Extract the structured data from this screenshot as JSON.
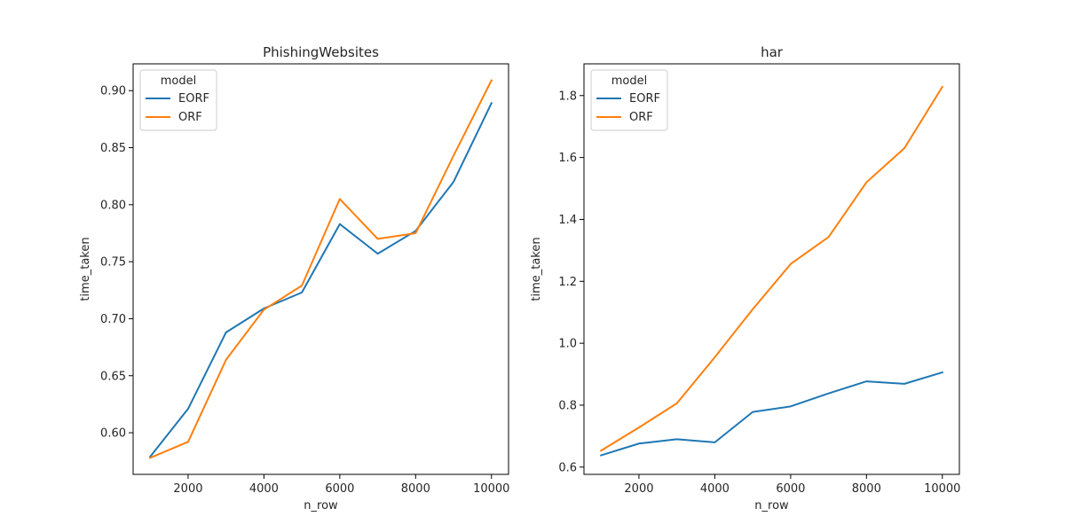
{
  "chart_data": [
    {
      "type": "line",
      "title": "PhishingWebsites",
      "xlabel": "n_row",
      "ylabel": "time_taken",
      "xlim": [
        550,
        10450
      ],
      "ylim": [
        0.5635,
        0.9235
      ],
      "xticks": [
        2000,
        4000,
        6000,
        8000,
        10000
      ],
      "xtick_labels": [
        "2000",
        "4000",
        "6000",
        "8000",
        "10000"
      ],
      "yticks": [
        0.6,
        0.65,
        0.7,
        0.75,
        0.8,
        0.85,
        0.9
      ],
      "ytick_labels": [
        "0.60",
        "0.65",
        "0.70",
        "0.75",
        "0.80",
        "0.85",
        "0.90"
      ],
      "legend_title": "model",
      "legend_position": "upper-left",
      "grid": false,
      "x": [
        1000,
        2000,
        3000,
        4000,
        5000,
        6000,
        7000,
        8000,
        9000,
        10000
      ],
      "series": [
        {
          "name": "EORF",
          "color": "#1f77b4",
          "values": [
            0.579,
            0.621,
            0.688,
            0.709,
            0.723,
            0.783,
            0.757,
            0.777,
            0.82,
            0.889
          ]
        },
        {
          "name": "ORF",
          "color": "#ff7f0e",
          "values": [
            0.578,
            0.592,
            0.664,
            0.708,
            0.729,
            0.805,
            0.77,
            0.775,
            0.843,
            0.909
          ]
        }
      ]
    },
    {
      "type": "line",
      "title": "har",
      "xlabel": "n_row",
      "ylabel": "time_taken",
      "xlim": [
        550,
        10450
      ],
      "ylim": [
        0.5765,
        1.9025
      ],
      "xticks": [
        2000,
        4000,
        6000,
        8000,
        10000
      ],
      "xtick_labels": [
        "2000",
        "4000",
        "6000",
        "8000",
        "10000"
      ],
      "yticks": [
        0.6,
        0.8,
        1.0,
        1.2,
        1.4,
        1.6,
        1.8
      ],
      "ytick_labels": [
        "0.6",
        "0.8",
        "1.0",
        "1.2",
        "1.4",
        "1.6",
        "1.8"
      ],
      "legend_title": "model",
      "legend_position": "upper-left",
      "grid": false,
      "x": [
        1000,
        2000,
        3000,
        4000,
        5000,
        6000,
        7000,
        8000,
        9000,
        10000
      ],
      "series": [
        {
          "name": "EORF",
          "color": "#1f77b4",
          "values": [
            0.638,
            0.676,
            0.69,
            0.68,
            0.778,
            0.796,
            0.838,
            0.877,
            0.869,
            0.906
          ]
        },
        {
          "name": "ORF",
          "color": "#ff7f0e",
          "values": [
            0.653,
            0.728,
            0.806,
            0.955,
            1.11,
            1.256,
            1.343,
            1.52,
            1.63,
            1.828
          ]
        }
      ]
    }
  ]
}
